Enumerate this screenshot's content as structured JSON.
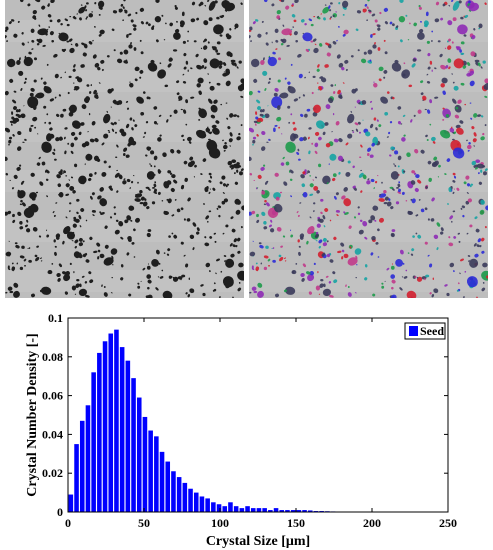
{
  "images": {
    "left_name": "micrograph-raw",
    "right_name": "micrograph-segmented",
    "particle_color_raw": "#1e1e1e",
    "panel_background": "#bdbdbd",
    "segmentation_colors": [
      "#2b2bd6",
      "#d11f2f",
      "#1d9a4a",
      "#8e2bb5",
      "#16a3a3",
      "#c03a8a"
    ]
  },
  "chart_data": {
    "type": "bar",
    "title": "",
    "xlabel": "Crystal Size [μm]",
    "ylabel": "Crystal Number Density [-]",
    "xlim": [
      0,
      250
    ],
    "ylim": [
      0,
      0.1
    ],
    "xticks": [
      0,
      50,
      100,
      150,
      200,
      250
    ],
    "yticks": [
      0,
      0.02,
      0.04,
      0.06,
      0.08,
      0.1
    ],
    "ytick_labels": [
      "0",
      "0.02",
      "0.04",
      "0.06",
      "0.08",
      "0.1"
    ],
    "bin_width": 3.75,
    "legend_position": "top-right",
    "series": [
      {
        "name": "Seed",
        "color": "#0000ff",
        "x": [
          0,
          3.75,
          7.5,
          11.25,
          15,
          18.75,
          22.5,
          26.25,
          30,
          33.75,
          37.5,
          41.25,
          45,
          48.75,
          52.5,
          56.25,
          60,
          63.75,
          67.5,
          71.25,
          75,
          78.75,
          82.5,
          86.25,
          90,
          93.75,
          97.5,
          101.25,
          105,
          108.75,
          112.5,
          116.25,
          120,
          123.75,
          127.5,
          131.25,
          135,
          138.75,
          142.5,
          146.25,
          150,
          153.75,
          157.5,
          161.25,
          165,
          168.75,
          172.5,
          176.25,
          180
        ],
        "values": [
          0.009,
          0.035,
          0.047,
          0.055,
          0.072,
          0.082,
          0.088,
          0.092,
          0.094,
          0.085,
          0.078,
          0.069,
          0.059,
          0.049,
          0.042,
          0.039,
          0.031,
          0.026,
          0.021,
          0.018,
          0.015,
          0.012,
          0.01,
          0.008,
          0.007,
          0.005,
          0.004,
          0.003,
          0.005,
          0.003,
          0.002,
          0.003,
          0.002,
          0.002,
          0.002,
          0.001,
          0.002,
          0.001,
          0.001,
          0.001,
          0.001,
          0.001,
          0.0008,
          0.0005,
          0.0005,
          0.0004,
          0.0003,
          0.0002,
          0.0002
        ]
      }
    ]
  }
}
